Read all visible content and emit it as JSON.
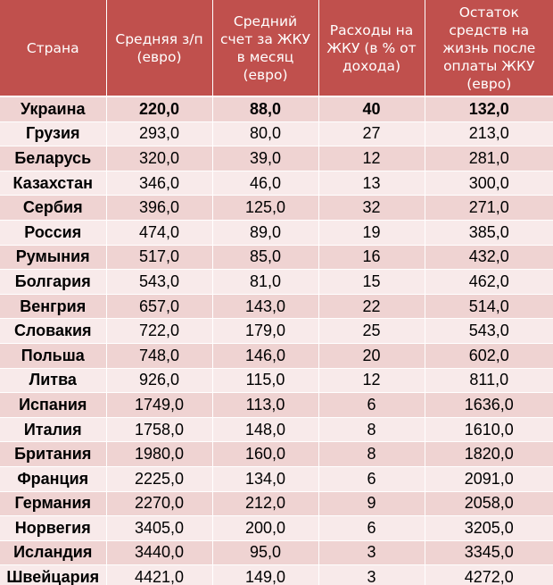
{
  "table": {
    "headers": [
      "Страна",
      "Средняя з/п (евро)",
      "Средний счет за ЖКУ в месяц (евро)",
      "Расходы на ЖКУ (в % от дохода)",
      "Остаток средств на жизнь после оплаты ЖКУ (евро)"
    ],
    "rows": [
      [
        "Украина",
        "220,0",
        "88,0",
        "40",
        "132,0"
      ],
      [
        "Грузия",
        "293,0",
        "80,0",
        "27",
        "213,0"
      ],
      [
        "Беларусь",
        "320,0",
        "39,0",
        "12",
        "281,0"
      ],
      [
        "Казахстан",
        "346,0",
        "46,0",
        "13",
        "300,0"
      ],
      [
        "Сербия",
        "396,0",
        "125,0",
        "32",
        "271,0"
      ],
      [
        "Россия",
        "474,0",
        "89,0",
        "19",
        "385,0"
      ],
      [
        "Румыния",
        "517,0",
        "85,0",
        "16",
        "432,0"
      ],
      [
        "Болгария",
        "543,0",
        "81,0",
        "15",
        "462,0"
      ],
      [
        "Венгрия",
        "657,0",
        "143,0",
        "22",
        "514,0"
      ],
      [
        "Словакия",
        "722,0",
        "179,0",
        "25",
        "543,0"
      ],
      [
        "Польша",
        "748,0",
        "146,0",
        "20",
        "602,0"
      ],
      [
        "Литва",
        "926,0",
        "115,0",
        "12",
        "811,0"
      ],
      [
        "Испания",
        "1749,0",
        "113,0",
        "6",
        "1636,0"
      ],
      [
        "Италия",
        "1758,0",
        "148,0",
        "8",
        "1610,0"
      ],
      [
        "Британия",
        "1980,0",
        "160,0",
        "8",
        "1820,0"
      ],
      [
        "Франция",
        "2225,0",
        "134,0",
        "6",
        "2091,0"
      ],
      [
        "Германия",
        "2270,0",
        "212,0",
        "9",
        "2058,0"
      ],
      [
        "Норвегия",
        "3405,0",
        "200,0",
        "6",
        "3205,0"
      ],
      [
        "Исландия",
        "3440,0",
        "95,0",
        "3",
        "3345,0"
      ],
      [
        "Швейцария",
        "4421,0",
        "149,0",
        "3",
        "4272,0"
      ]
    ]
  },
  "colors": {
    "header_bg": "#c0504d",
    "header_text": "#ffffff",
    "row_odd_bg": "#efd3d2",
    "row_even_bg": "#f8eaea"
  }
}
